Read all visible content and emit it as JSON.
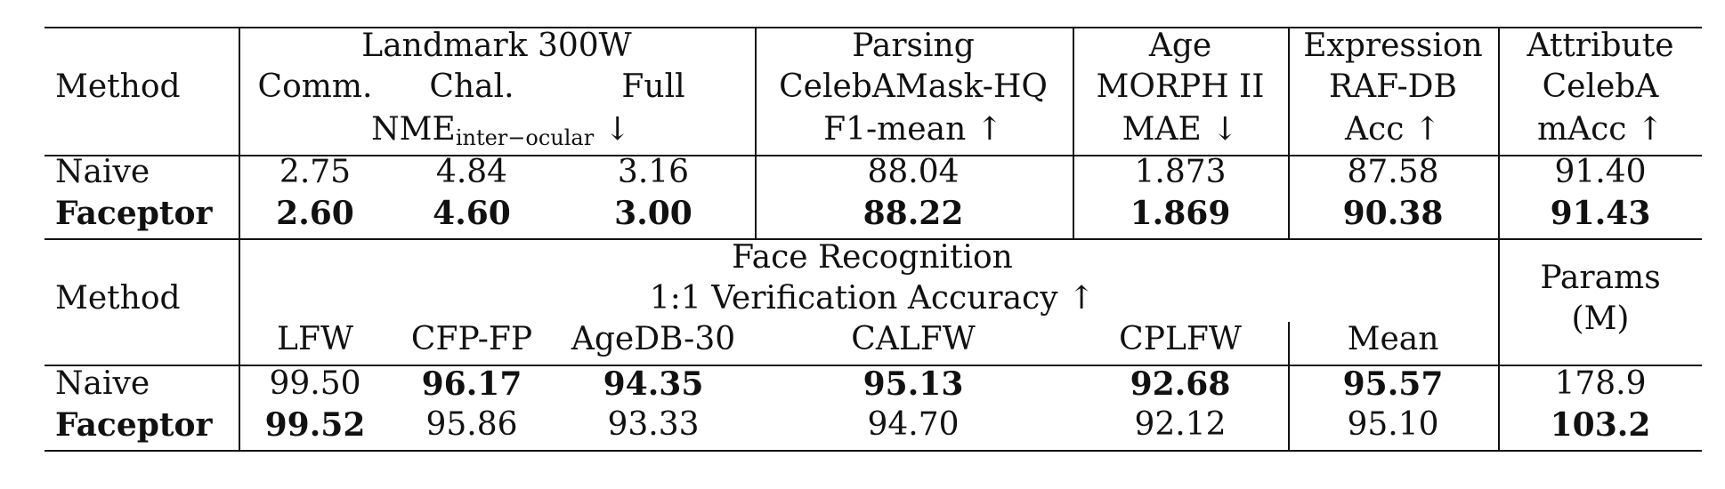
{
  "table_top": {
    "method_header": "Method",
    "landmark_header": "Landmark 300W",
    "landmark_cols": [
      "Comm.",
      "Chal.",
      "Full"
    ],
    "landmark_metric_main": "NME",
    "landmark_metric_sub": "inter−ocular",
    "landmark_metric_arrow": "↓",
    "parsing_header": "Parsing",
    "parsing_dataset": "CelebAMask-HQ",
    "parsing_metric": "F1-mean ↑",
    "age_header": "Age",
    "age_dataset": "MORPH II",
    "age_metric": "MAE ↓",
    "expression_header": "Expression",
    "expression_dataset": "RAF-DB",
    "expression_metric": "Acc ↑",
    "attribute_header": "Attribute",
    "attribute_dataset": "CelebA",
    "attribute_metric": "mAcc ↑",
    "rows": [
      {
        "method": "Naive",
        "values": [
          "2.75",
          "4.84",
          "3.16",
          "88.04",
          "1.873",
          "87.58",
          "91.40"
        ]
      },
      {
        "method": "Faceptor",
        "values": [
          "2.60",
          "4.60",
          "3.00",
          "88.22",
          "1.869",
          "90.38",
          "91.43"
        ]
      }
    ]
  },
  "table_bottom": {
    "method_header": "Method",
    "fr_header": "Face Recognition",
    "fr_metric": "1:1 Verification Accuracy ↑",
    "fr_cols": [
      "LFW",
      "CFP-FP",
      "AgeDB-30",
      "CALFW",
      "CPLFW",
      "Mean"
    ],
    "params_header_1": "Params",
    "params_header_2": "(M)",
    "rows": [
      {
        "method": "Naive",
        "values": [
          "99.50",
          "96.17",
          "94.35",
          "95.13",
          "92.68",
          "95.57",
          "178.9"
        ]
      },
      {
        "method": "Faceptor",
        "values": [
          "99.52",
          "95.86",
          "93.33",
          "94.70",
          "92.12",
          "95.10",
          "103.2"
        ]
      }
    ]
  }
}
